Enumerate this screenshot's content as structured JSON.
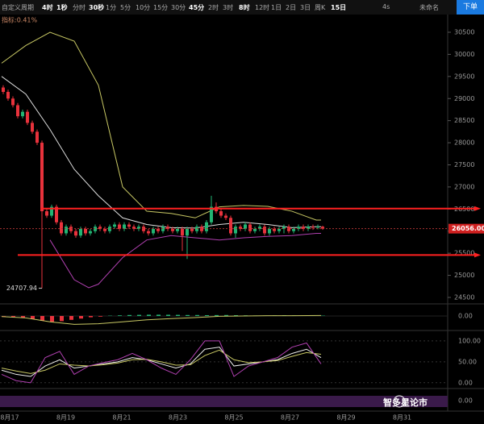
{
  "toolbar": {
    "items": [
      "自定义周期",
      "4时",
      "1秒",
      "分时",
      "30秒",
      "1分",
      "5分",
      "10分",
      "15分",
      "30分",
      "45分",
      "2时",
      "3时",
      "8时",
      "12时",
      "1日",
      "2日",
      "3日",
      "周K",
      "15日"
    ],
    "emphasized": [
      1,
      2,
      4,
      10,
      13,
      19
    ],
    "refresh": "4s",
    "layout_name": "未命名",
    "order_button": "下单"
  },
  "chart_data": {
    "type": "candlestick",
    "indicator_label": "指标:0.41%",
    "open": [
      29250,
      29150,
      29000,
      28850,
      28600,
      28700,
      28450,
      28250,
      28000,
      26450,
      26350,
      26550,
      26200,
      25950,
      26100,
      26000,
      25900,
      26050,
      25950,
      26000,
      26100,
      26050,
      26000,
      26100,
      26150,
      26050,
      26150,
      26100,
      26050,
      26100,
      26000,
      25950,
      26050,
      26000,
      26100,
      26050,
      26000,
      26050,
      25900,
      26050,
      26000,
      26100,
      26000,
      26200,
      26550,
      26450,
      26350,
      26300,
      25950,
      26100,
      26050,
      26150,
      26000,
      26050,
      26100,
      25950,
      26050,
      26000,
      26050,
      26100,
      26000,
      26050,
      26100,
      26050,
      26100,
      26080,
      26100
    ],
    "high": [
      29300,
      29200,
      29050,
      28900,
      28750,
      28750,
      28500,
      28300,
      28050,
      26500,
      26600,
      26600,
      26250,
      26150,
      26150,
      26050,
      26100,
      26100,
      26050,
      26150,
      26150,
      26100,
      26150,
      26200,
      26200,
      26200,
      26200,
      26150,
      26150,
      26150,
      26050,
      26100,
      26100,
      26150,
      26150,
      26100,
      26100,
      26100,
      26100,
      26100,
      26150,
      26150,
      26250,
      26800,
      26650,
      26500,
      26400,
      26350,
      26150,
      26150,
      26200,
      26200,
      26100,
      26150,
      26150,
      26100,
      26100,
      26100,
      26150,
      26150,
      26100,
      26150,
      26150,
      26150,
      26150,
      26150,
      26120
    ],
    "low": [
      29100,
      28950,
      28800,
      28550,
      28550,
      28400,
      28200,
      27950,
      24708,
      26300,
      26300,
      26150,
      25900,
      25900,
      25950,
      25850,
      25850,
      25900,
      25900,
      25950,
      26000,
      25950,
      25950,
      26050,
      26000,
      26000,
      26050,
      26000,
      26000,
      25950,
      25900,
      25900,
      25950,
      25950,
      26000,
      25950,
      25950,
      25550,
      25370,
      25950,
      25950,
      25950,
      25950,
      26150,
      26400,
      26300,
      26250,
      25900,
      25850,
      26000,
      26000,
      25950,
      25950,
      26000,
      25900,
      25900,
      25950,
      25950,
      25950,
      25950,
      25950,
      26000,
      26000,
      26000,
      26030,
      26040,
      26030
    ],
    "close": [
      29150,
      29000,
      28850,
      28600,
      28700,
      28450,
      28250,
      28000,
      26450,
      26350,
      26550,
      26200,
      25950,
      26100,
      26000,
      25900,
      26050,
      25950,
      26000,
      26100,
      26050,
      26000,
      26100,
      26150,
      26050,
      26150,
      26100,
      26050,
      26100,
      26000,
      25950,
      26050,
      26000,
      26100,
      26050,
      26000,
      26050,
      25900,
      26050,
      26000,
      26100,
      26000,
      26200,
      26550,
      26450,
      26350,
      26300,
      25950,
      26100,
      26050,
      26150,
      26000,
      26050,
      26100,
      25950,
      26050,
      26000,
      26050,
      26100,
      26000,
      26050,
      26100,
      26050,
      26100,
      26080,
      26100,
      26056
    ],
    "up_color": "#22b573",
    "down_color": "#e8323c",
    "bands": [
      {
        "color": "#c8c864",
        "x": [
          0,
          5,
          10,
          15,
          20,
          25,
          30,
          35,
          40,
          45,
          50,
          55,
          60,
          65,
          66
        ],
        "values": [
          29800,
          30200,
          30500,
          30300,
          29300,
          27000,
          26450,
          26400,
          26300,
          26550,
          26580,
          26560,
          26450,
          26250,
          26250
        ]
      },
      {
        "color": "#dddddd",
        "x": [
          0,
          5,
          10,
          15,
          20,
          25,
          30,
          35,
          40,
          45,
          50,
          55,
          60,
          65,
          66
        ],
        "values": [
          29500,
          29100,
          28300,
          27400,
          26800,
          26300,
          26150,
          26080,
          26070,
          26150,
          26200,
          26150,
          26080,
          26100,
          26100
        ]
      },
      {
        "color": "#b040b0",
        "x": [
          10,
          15,
          18,
          20,
          25,
          30,
          35,
          40,
          45,
          50,
          55,
          60,
          65,
          66
        ],
        "values": [
          25800,
          24900,
          24720,
          24800,
          25400,
          25800,
          25900,
          25850,
          25800,
          25850,
          25880,
          25900,
          25950,
          25950
        ]
      }
    ],
    "ylim": [
      24390,
      30865
    ],
    "yticks": [
      24500,
      25000,
      25500,
      26000,
      26500,
      27000,
      27500,
      28000,
      28500,
      29000,
      29500,
      30000,
      30500
    ],
    "last_price": {
      "value": 26056,
      "label": "26056.00"
    },
    "low_mark": {
      "value": 24707.94,
      "index": 8
    },
    "hlines": [
      26510,
      25460
    ],
    "hline_color": "#ff2020",
    "dates": [
      "8月17",
      "8月19",
      "8月21",
      "8月23",
      "8月25",
      "8月27",
      "8月29",
      "8月31"
    ],
    "macd": {
      "ylim": [
        -300,
        300
      ],
      "yticks": [
        {
          "value": 0,
          "label": "0.00"
        }
      ],
      "dif": {
        "color": "#c8c864",
        "x": [
          0,
          5,
          10,
          15,
          20,
          25,
          30,
          35,
          40,
          45,
          50,
          55,
          60,
          66
        ],
        "values": [
          -20,
          -60,
          -180,
          -260,
          -240,
          -180,
          -120,
          -80,
          -50,
          -10,
          0,
          10,
          10,
          15
        ]
      },
      "hist": {
        "x": [
          0,
          2,
          4,
          6,
          8,
          10,
          12,
          14,
          16,
          18,
          20,
          22,
          24,
          26,
          28,
          30,
          32,
          34,
          36,
          38,
          40,
          42,
          44,
          46,
          48,
          50,
          52,
          54,
          56,
          58,
          60,
          62,
          64,
          66
        ],
        "values": [
          -10,
          -30,
          -60,
          -100,
          -150,
          -180,
          -160,
          -120,
          -80,
          -40,
          -20,
          10,
          20,
          30,
          35,
          40,
          40,
          38,
          35,
          30,
          30,
          25,
          28,
          30,
          25,
          20,
          15,
          15,
          20,
          25,
          20,
          15,
          10,
          10
        ]
      }
    },
    "kdj": {
      "ylim": [
        -10,
        121
      ],
      "yticks": [
        {
          "value": 0,
          "label": "0.00"
        },
        {
          "value": 50,
          "label": "50.00"
        },
        {
          "value": 100,
          "label": "100.00"
        }
      ],
      "x": [
        0,
        3,
        6,
        9,
        12,
        15,
        18,
        21,
        24,
        27,
        30,
        33,
        36,
        39,
        42,
        45,
        48,
        51,
        54,
        57,
        60,
        63,
        66
      ],
      "series": [
        {
          "color": "#eeeeee",
          "values": [
            30,
            20,
            15,
            40,
            55,
            35,
            40,
            45,
            50,
            60,
            55,
            45,
            35,
            45,
            80,
            85,
            40,
            45,
            50,
            55,
            70,
            80,
            60
          ]
        },
        {
          "color": "#c8c864",
          "values": [
            35,
            28,
            22,
            30,
            45,
            42,
            40,
            43,
            47,
            55,
            56,
            50,
            42,
            43,
            65,
            78,
            55,
            48,
            50,
            53,
            63,
            72,
            68
          ]
        },
        {
          "color": "#b040b0",
          "values": [
            20,
            5,
            0,
            60,
            75,
            20,
            40,
            48,
            55,
            70,
            55,
            35,
            20,
            55,
            100,
            100,
            15,
            40,
            50,
            60,
            85,
            95,
            45
          ]
        }
      ]
    },
    "third": {
      "yticks": [
        {
          "value": 0,
          "label": "0.00"
        }
      ]
    },
    "watermark": "智多星论市"
  }
}
